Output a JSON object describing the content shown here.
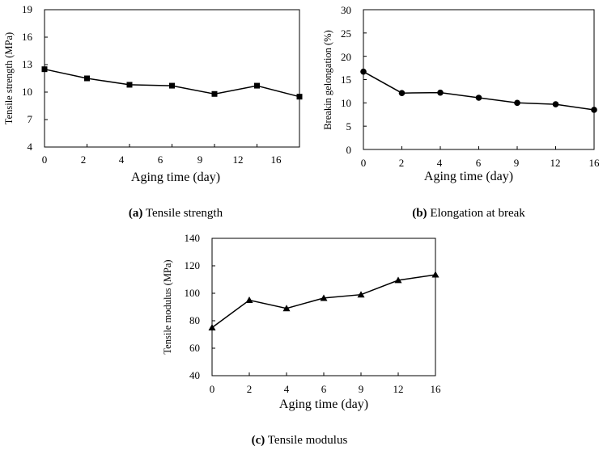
{
  "chart_data": [
    {
      "type": "line",
      "x": [
        "0",
        "2",
        "4",
        "6",
        "9",
        "12",
        "16"
      ],
      "values": [
        12.5,
        11.5,
        10.8,
        10.7,
        9.8,
        10.7,
        9.5
      ],
      "ylabel": "Tensile strength (MPa)",
      "xlabel": "Aging time (day)",
      "yticks": [
        "4",
        "7",
        "10",
        "13",
        "16",
        "19"
      ],
      "ylim": [
        4,
        19
      ],
      "marker": "square",
      "caption_letter": "(a)",
      "caption_text": " Tensile strength",
      "grid": false
    },
    {
      "type": "line",
      "x": [
        "0",
        "2",
        "4",
        "6",
        "9",
        "12",
        "16"
      ],
      "values": [
        16.7,
        12.1,
        12.2,
        11.1,
        10.0,
        9.7,
        8.5
      ],
      "ylabel": "Breakin gelongation (%)",
      "xlabel": "Aging time (day)",
      "yticks": [
        "0",
        "5",
        "10",
        "15",
        "20",
        "25",
        "30"
      ],
      "ylim": [
        0,
        30
      ],
      "marker": "circle",
      "caption_letter": "(b)",
      "caption_text": " Elongation at break",
      "grid": false
    },
    {
      "type": "line",
      "x": [
        "0",
        "2",
        "4",
        "6",
        "9",
        "12",
        "16"
      ],
      "values": [
        75,
        95,
        89,
        96.5,
        99,
        109.5,
        113.5
      ],
      "ylabel": "Tensile modulus (MPa)",
      "xlabel": "Aging time (day)",
      "yticks": [
        "40",
        "60",
        "80",
        "100",
        "120",
        "140"
      ],
      "ylim": [
        40,
        140
      ],
      "marker": "triangle",
      "caption_letter": "(c)",
      "caption_text": " Tensile modulus",
      "grid": false
    }
  ]
}
